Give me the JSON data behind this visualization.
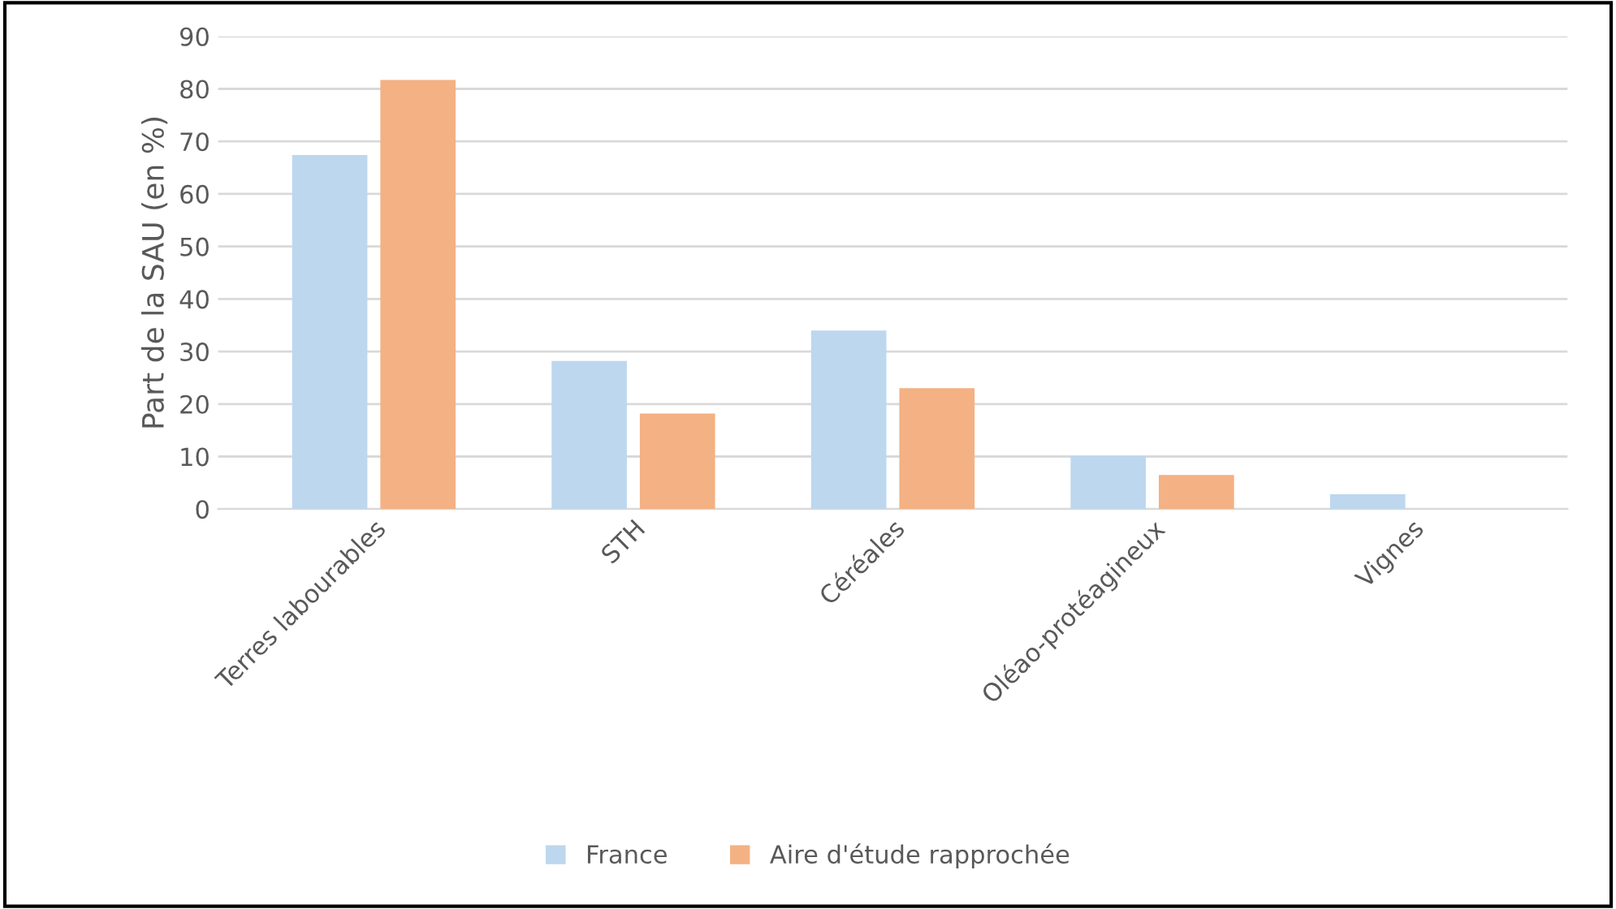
{
  "chart_data": {
    "type": "bar",
    "ylabel": "Part de la SAU (en %)",
    "categories": [
      "Terres labourables",
      "STH",
      "Céréales",
      "Oléao-protéagineux",
      "Vignes"
    ],
    "series": [
      {
        "name": "France",
        "color": "#bdd7ee",
        "values": [
          67.4,
          28.2,
          34,
          10.1,
          2.8
        ]
      },
      {
        "name": "Aire d'étude rapprochée",
        "color": "#f4b183",
        "values": [
          81.7,
          18.2,
          23,
          6.5,
          0
        ]
      }
    ],
    "ylim": [
      0,
      90
    ],
    "yticks": [
      0,
      10,
      20,
      30,
      40,
      50,
      60,
      70,
      80,
      90
    ],
    "grid": "y",
    "legend": "bottom"
  }
}
